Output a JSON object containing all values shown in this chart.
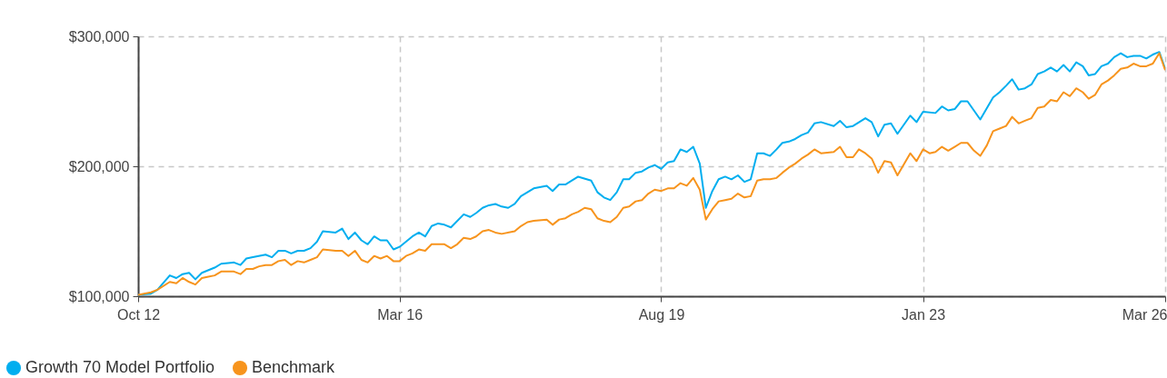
{
  "chart_data": {
    "type": "line",
    "legend": "bottom left",
    "grid": true,
    "xlim": [
      "2012-10",
      "2026-03"
    ],
    "xticks": [
      {
        "value": "2012-10",
        "label": "Oct 12"
      },
      {
        "value": "2016-03",
        "label": "Mar 16"
      },
      {
        "value": "2019-08",
        "label": "Aug 19"
      },
      {
        "value": "2023-01",
        "label": "Jan 23"
      },
      {
        "value": "2026-03",
        "label": "Mar 26"
      }
    ],
    "ylim": [
      100000,
      300000
    ],
    "yticks": [
      {
        "value": 100000,
        "label": "$100,000"
      },
      {
        "value": 200000,
        "label": "$200,000"
      },
      {
        "value": 300000,
        "label": "$300,000"
      }
    ],
    "series": [
      {
        "name": "Growth 70 Model Portfolio",
        "color": "#00aeef",
        "x": [
          "2012-10",
          "2012-12",
          "2013-01",
          "2013-03",
          "2013-04",
          "2013-05",
          "2013-06",
          "2013-07",
          "2013-08",
          "2013-10",
          "2013-11",
          "2014-01",
          "2014-02",
          "2014-03",
          "2014-04",
          "2014-06",
          "2014-07",
          "2014-08",
          "2014-09",
          "2014-10",
          "2014-11",
          "2014-12",
          "2015-01",
          "2015-02",
          "2015-03",
          "2015-05",
          "2015-06",
          "2015-07",
          "2015-08",
          "2015-09",
          "2015-10",
          "2015-11",
          "2015-12",
          "2016-01",
          "2016-02",
          "2016-03",
          "2016-05",
          "2016-06",
          "2016-07",
          "2016-08",
          "2016-09",
          "2016-10",
          "2016-11",
          "2017-01",
          "2017-02",
          "2017-03",
          "2017-04",
          "2017-05",
          "2017-06",
          "2017-07",
          "2017-08",
          "2017-09",
          "2017-10",
          "2017-12",
          "2018-02",
          "2018-03",
          "2018-04",
          "2018-05",
          "2018-06",
          "2018-07",
          "2018-09",
          "2018-10",
          "2018-11",
          "2018-12",
          "2019-01",
          "2019-02",
          "2019-03",
          "2019-04",
          "2019-05",
          "2019-06",
          "2019-07",
          "2019-08",
          "2019-09",
          "2019-10",
          "2019-11",
          "2019-12",
          "2020-01",
          "2020-02",
          "2020-03",
          "2020-04",
          "2020-05",
          "2020-06",
          "2020-07",
          "2020-08",
          "2020-09",
          "2020-10",
          "2020-11",
          "2020-12",
          "2021-01",
          "2021-02",
          "2021-03",
          "2021-04",
          "2021-05",
          "2021-06",
          "2021-07",
          "2021-08",
          "2021-09",
          "2021-11",
          "2021-12",
          "2022-01",
          "2022-02",
          "2022-04",
          "2022-05",
          "2022-06",
          "2022-07",
          "2022-08",
          "2022-09",
          "2022-11",
          "2022-12",
          "2023-01",
          "2023-03",
          "2023-04",
          "2023-05",
          "2023-06",
          "2023-07",
          "2023-08",
          "2023-10",
          "2023-12",
          "2024-01",
          "2024-02",
          "2024-03",
          "2024-04",
          "2024-05",
          "2024-06",
          "2024-07",
          "2024-08",
          "2024-09",
          "2024-10",
          "2024-11",
          "2024-12",
          "2025-01",
          "2025-02",
          "2025-03",
          "2025-04",
          "2025-05",
          "2025-06",
          "2025-07",
          "2025-08",
          "2025-09",
          "2025-10",
          "2025-11",
          "2025-12",
          "2026-01",
          "2026-02",
          "2026-03"
        ],
        "values": [
          101000,
          102000,
          105000,
          116000,
          114000,
          117000,
          118000,
          113000,
          118000,
          122000,
          125000,
          126000,
          124000,
          129000,
          130000,
          132000,
          130000,
          135000,
          135000,
          133000,
          135000,
          135000,
          137000,
          142000,
          150000,
          149000,
          152000,
          144000,
          149000,
          143000,
          140000,
          146000,
          143000,
          143000,
          136000,
          138000,
          146000,
          149000,
          146000,
          154000,
          156000,
          155000,
          153000,
          163000,
          161000,
          164000,
          168000,
          170000,
          171000,
          169000,
          168000,
          171000,
          177000,
          183000,
          185000,
          181000,
          186000,
          186000,
          189000,
          192000,
          189000,
          180000,
          176000,
          174000,
          180000,
          190000,
          190000,
          195000,
          196000,
          199000,
          201000,
          198000,
          203000,
          204000,
          213000,
          211000,
          215000,
          202000,
          168000,
          181000,
          190000,
          192000,
          190000,
          193000,
          188000,
          190000,
          210000,
          210000,
          208000,
          213000,
          218000,
          219000,
          221000,
          224000,
          226000,
          233000,
          234000,
          231000,
          235000,
          230000,
          231000,
          237000,
          234000,
          223000,
          232000,
          233000,
          225000,
          239000,
          234000,
          242000,
          241000,
          246000,
          243000,
          244000,
          250000,
          250000,
          236000,
          253000,
          257000,
          262000,
          267000,
          259000,
          260000,
          263000,
          271000,
          273000,
          276000,
          273000,
          278000,
          273000,
          280000,
          277000,
          270000,
          271000,
          277000,
          279000,
          284000,
          287000,
          284000,
          285000,
          285000,
          283000,
          286000,
          288000,
          275000
        ]
      },
      {
        "name": "Benchmark",
        "color": "#f7941d",
        "x": [
          "2012-10",
          "2012-12",
          "2013-01",
          "2013-03",
          "2013-04",
          "2013-05",
          "2013-06",
          "2013-07",
          "2013-08",
          "2013-09",
          "2013-10",
          "2013-11",
          "2013-12",
          "2014-01",
          "2014-02",
          "2014-03",
          "2014-04",
          "2014-05",
          "2014-06",
          "2014-07",
          "2014-08",
          "2014-09",
          "2014-10",
          "2014-11",
          "2014-12",
          "2015-01",
          "2015-02",
          "2015-03",
          "2015-05",
          "2015-06",
          "2015-07",
          "2015-08",
          "2015-09",
          "2015-10",
          "2015-11",
          "2015-12",
          "2016-01",
          "2016-02",
          "2016-03",
          "2016-04",
          "2016-05",
          "2016-06",
          "2016-07",
          "2016-08",
          "2016-10",
          "2016-11",
          "2016-12",
          "2017-01",
          "2017-02",
          "2017-03",
          "2017-04",
          "2017-05",
          "2017-06",
          "2017-07",
          "2017-09",
          "2017-10",
          "2017-11",
          "2017-12",
          "2018-02",
          "2018-03",
          "2018-04",
          "2018-05",
          "2018-06",
          "2018-07",
          "2018-08",
          "2018-09",
          "2018-10",
          "2018-11",
          "2018-12",
          "2019-01",
          "2019-02",
          "2019-03",
          "2019-04",
          "2019-05",
          "2019-06",
          "2019-07",
          "2019-08",
          "2019-09",
          "2019-10",
          "2019-11",
          "2019-12",
          "2020-01",
          "2020-02",
          "2020-03",
          "2020-04",
          "2020-05",
          "2020-06",
          "2020-07",
          "2020-08",
          "2020-09",
          "2020-10",
          "2020-11",
          "2020-12",
          "2021-01",
          "2021-02",
          "2021-03",
          "2021-04",
          "2021-05",
          "2021-06",
          "2021-07",
          "2021-08",
          "2021-09",
          "2021-11",
          "2021-12",
          "2022-01",
          "2022-02",
          "2022-03",
          "2022-04",
          "2022-05",
          "2022-06",
          "2022-07",
          "2022-08",
          "2022-09",
          "2022-11",
          "2022-12",
          "2023-01",
          "2023-02",
          "2023-03",
          "2023-04",
          "2023-05",
          "2023-06",
          "2023-07",
          "2023-08",
          "2023-09",
          "2023-10",
          "2023-11",
          "2023-12",
          "2024-01",
          "2024-02",
          "2024-03",
          "2024-04",
          "2024-05",
          "2024-06",
          "2024-07",
          "2024-08",
          "2024-09",
          "2024-10",
          "2024-11",
          "2024-12",
          "2025-01",
          "2025-02",
          "2025-03",
          "2025-04",
          "2025-05",
          "2025-06",
          "2025-07",
          "2025-08",
          "2025-09",
          "2025-10",
          "2025-11",
          "2025-12",
          "2026-01",
          "2026-02",
          "2026-03"
        ],
        "values": [
          101000,
          103000,
          105000,
          111000,
          110000,
          114000,
          111000,
          109000,
          114000,
          115000,
          116000,
          119000,
          119000,
          119000,
          117000,
          121000,
          121000,
          123000,
          124000,
          124000,
          127000,
          128000,
          124000,
          127000,
          126000,
          128000,
          130000,
          136000,
          135000,
          135000,
          131000,
          135000,
          128000,
          126000,
          131000,
          129000,
          131000,
          127000,
          127000,
          131000,
          133000,
          136000,
          135000,
          140000,
          140000,
          137000,
          140000,
          145000,
          144000,
          146000,
          150000,
          151000,
          149000,
          148000,
          150000,
          154000,
          157000,
          158000,
          159000,
          155000,
          159000,
          160000,
          163000,
          165000,
          168000,
          167000,
          160000,
          158000,
          157000,
          161000,
          168000,
          169000,
          173000,
          174000,
          179000,
          182000,
          181000,
          183000,
          183000,
          187000,
          185000,
          191000,
          182000,
          159000,
          167000,
          173000,
          174000,
          175000,
          179000,
          176000,
          177000,
          189000,
          190000,
          190000,
          191000,
          195000,
          199000,
          202000,
          206000,
          209000,
          213000,
          210000,
          211000,
          215000,
          207000,
          207000,
          213000,
          210000,
          206000,
          195000,
          204000,
          203000,
          193000,
          210000,
          204000,
          213000,
          210000,
          211000,
          215000,
          212000,
          215000,
          218000,
          218000,
          212000,
          208000,
          216000,
          227000,
          229000,
          231000,
          238000,
          233000,
          235000,
          237000,
          245000,
          246000,
          251000,
          250000,
          257000,
          254000,
          260000,
          257000,
          252000,
          255000,
          263000,
          266000,
          270000,
          275000,
          276000,
          279000,
          277000,
          277000,
          279000,
          287000,
          274000
        ]
      }
    ]
  }
}
